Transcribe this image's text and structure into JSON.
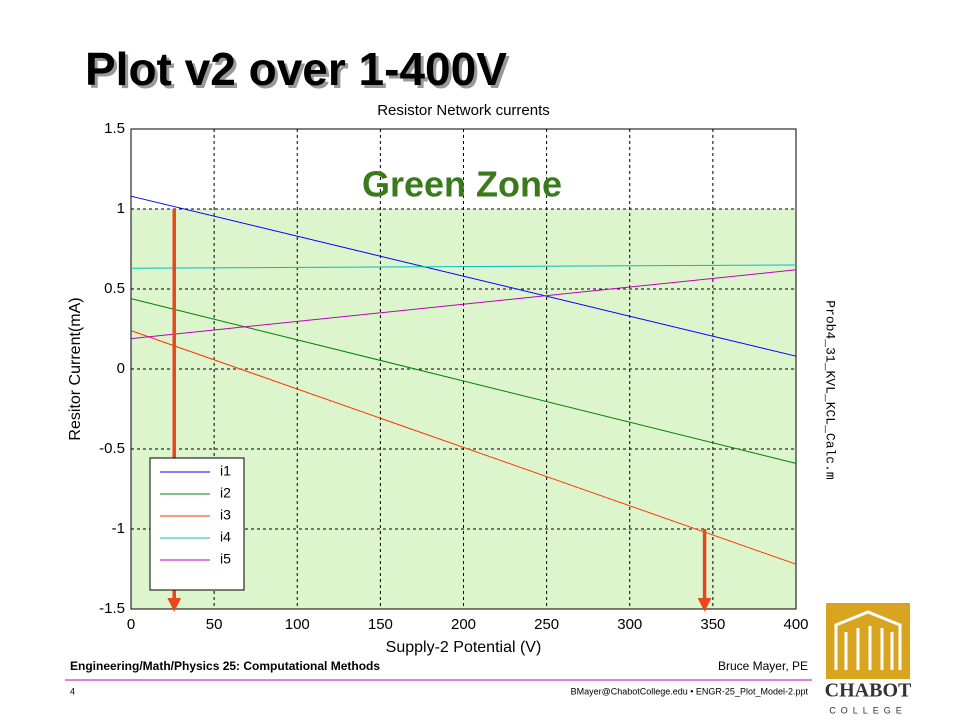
{
  "slide": {
    "title": "Plot v2 over 1-400V",
    "side_label": "Prob4_31_KVL_KCL_Calc.m",
    "footer_left": "Engineering/Math/Physics 25: Computational Methods",
    "footer_right": "Bruce Mayer, PE",
    "page_number": "4",
    "footer_email": "BMayer@ChabotCollege.edu  • ENGR-25_Plot_Model-2.ppt",
    "logo": "CHABOT",
    "logo_sub": "COLLEGE"
  },
  "chart_data": {
    "type": "line",
    "title": "Resistor Network currents",
    "xlabel": "Supply-2 Potential (V)",
    "ylabel": "Resitor Current(mA)",
    "x": [
      0,
      400
    ],
    "series": [
      {
        "name": "i1",
        "color": "#0000ff",
        "values": [
          1.08,
          0.08
        ]
      },
      {
        "name": "i2",
        "color": "#008000",
        "values": [
          0.44,
          -0.59
        ]
      },
      {
        "name": "i3",
        "color": "#ff3300",
        "values": [
          0.24,
          -1.22
        ]
      },
      {
        "name": "i4",
        "color": "#00bfbf",
        "values": [
          0.63,
          0.65
        ]
      },
      {
        "name": "i5",
        "color": "#bf00bf",
        "values": [
          0.19,
          0.62
        ]
      }
    ],
    "xlim": [
      0,
      400
    ],
    "ylim": [
      -1.5,
      1.5
    ],
    "xticks": [
      0,
      50,
      100,
      150,
      200,
      250,
      300,
      350,
      400
    ],
    "yticks": [
      -1.5,
      -1,
      -0.5,
      0,
      0.5,
      1,
      1.5
    ],
    "grid": true,
    "legend": "lower left",
    "zone": {
      "label": "Green Zone",
      "ylim": [
        -1.5,
        1
      ],
      "color": "#dcf5cc",
      "label_color": "#3a7a1a"
    },
    "arrows": [
      {
        "x": 26,
        "y": [
          1,
          -1.5
        ]
      },
      {
        "x": 345,
        "y": [
          -1,
          -1.5
        ]
      }
    ],
    "arrow_color": "#e8461e"
  }
}
